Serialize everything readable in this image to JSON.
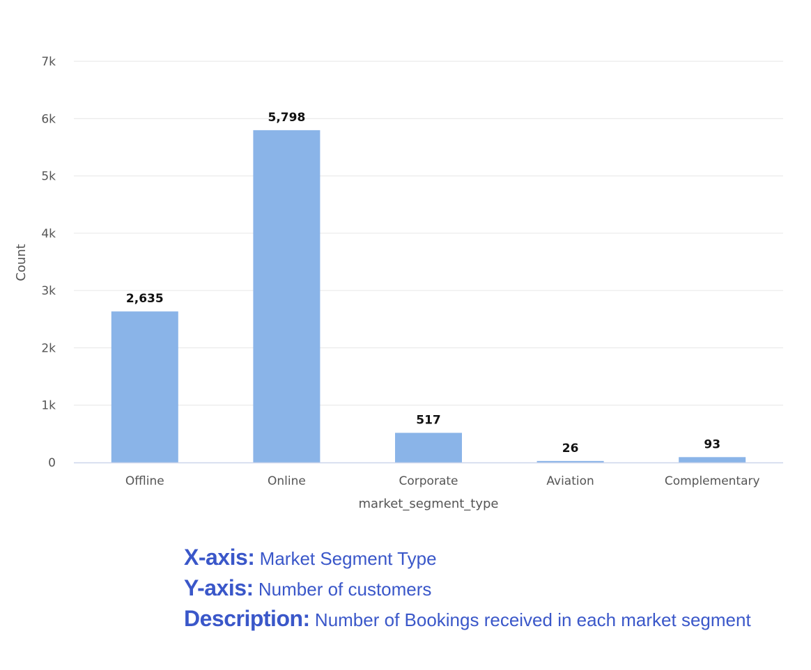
{
  "chart_data": {
    "type": "bar",
    "categories": [
      "Offline",
      "Online",
      "Corporate",
      "Aviation",
      "Complementary"
    ],
    "values": [
      2635,
      5798,
      517,
      26,
      93
    ],
    "value_labels": [
      "2,635",
      "5,798",
      "517",
      "26",
      "93"
    ],
    "xlabel": "market_segment_type",
    "ylabel": "Count",
    "ylim": [
      0,
      7000
    ],
    "yticks": [
      0,
      1000,
      2000,
      3000,
      4000,
      5000,
      6000,
      7000
    ],
    "ytick_labels": [
      "0",
      "1k",
      "2k",
      "3k",
      "4k",
      "5k",
      "6k",
      "7k"
    ],
    "grid": true,
    "legend": "none",
    "bar_color": "#8ab4e8"
  },
  "caption": {
    "xaxis_key": "X-axis:",
    "xaxis_value": " Market Segment Type",
    "yaxis_key": "Y-axis:",
    "yaxis_value": " Number of customers",
    "description_key": "Description:",
    "description_value": " Number of Bookings received in each market segment"
  },
  "colors": {
    "caption_text": "#3a57c9",
    "grid": "#e6e6e6",
    "axis_line": "#ccd6eb"
  }
}
